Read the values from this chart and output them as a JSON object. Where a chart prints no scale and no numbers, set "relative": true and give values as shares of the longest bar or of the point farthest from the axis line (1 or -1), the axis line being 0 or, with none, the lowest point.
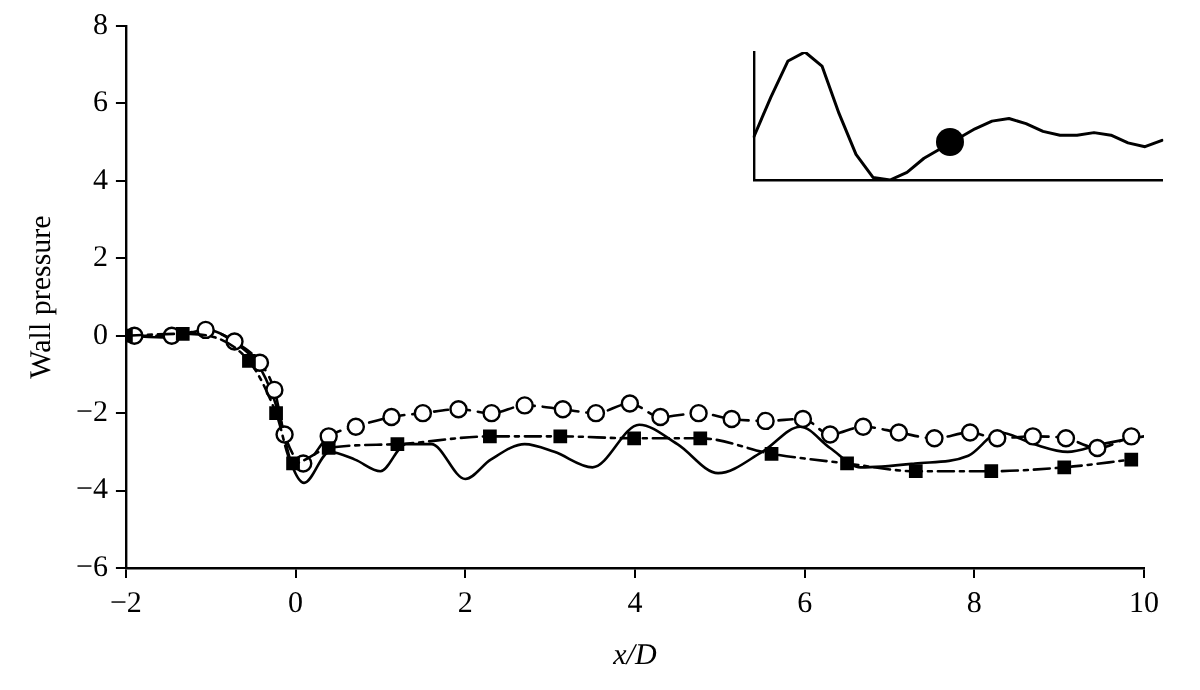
{
  "chart_data": [
    {
      "type": "line",
      "xlabel": "x/D",
      "ylabel": "Wall pressure",
      "xlim": [
        -2,
        10
      ],
      "ylim": [
        -6,
        8
      ],
      "xticks": [
        -2,
        0,
        2,
        4,
        6,
        8,
        10
      ],
      "yticks": [
        -6,
        -4,
        -2,
        0,
        2,
        4,
        6,
        8
      ],
      "grid": false,
      "legend": false,
      "series": [
        {
          "color": "#000000",
          "line_style": "solid",
          "marker": "none",
          "x": [
            -2,
            -1.5,
            -1.05,
            -0.7,
            -0.4,
            -0.2,
            -0.05,
            0.1,
            0.4,
            0.7,
            1.0,
            1.3,
            1.6,
            2.0,
            2.3,
            2.7,
            3.05,
            3.5,
            4.05,
            4.5,
            4.98,
            5.5,
            5.95,
            6.3,
            6.66,
            7.3,
            7.93,
            8.3,
            8.7,
            9.1,
            9.5,
            10
          ],
          "values": [
            0,
            -0.05,
            0.15,
            -0.2,
            -0.9,
            -2.0,
            -3.3,
            -3.8,
            -3.0,
            -3.2,
            -3.5,
            -2.8,
            -2.8,
            -3.7,
            -3.2,
            -2.8,
            -3.0,
            -3.4,
            -2.3,
            -2.8,
            -3.55,
            -3.0,
            -2.35,
            -2.9,
            -3.4,
            -3.3,
            -3.1,
            -2.5,
            -2.8,
            -3.0,
            -2.8,
            -2.6
          ]
        },
        {
          "color": "#000000",
          "line_style": "dashed",
          "marker": "circle",
          "x": [
            -1.9,
            -1.46,
            -1.06,
            -0.72,
            -0.42,
            -0.25,
            -0.13,
            0.09,
            0.39,
            0.71,
            1.13,
            1.5,
            1.92,
            2.31,
            2.7,
            3.15,
            3.54,
            3.94,
            4.3,
            4.75,
            5.14,
            5.54,
            5.98,
            6.3,
            6.69,
            7.11,
            7.53,
            7.95,
            8.27,
            8.69,
            9.08,
            9.45,
            9.85
          ],
          "values": [
            0,
            0,
            0.15,
            -0.15,
            -0.7,
            -1.4,
            -2.55,
            -3.3,
            -2.6,
            -2.35,
            -2.1,
            -2.0,
            -1.9,
            -2.0,
            -1.8,
            -1.9,
            -2.0,
            -1.75,
            -2.1,
            -2.0,
            -2.15,
            -2.2,
            -2.15,
            -2.55,
            -2.35,
            -2.5,
            -2.65,
            -2.5,
            -2.65,
            -2.6,
            -2.65,
            -2.9,
            -2.6
          ]
        },
        {
          "color": "#000000",
          "line_style": "dashdot",
          "marker": "square",
          "x": [
            -2,
            -1.33,
            -0.55,
            -0.23,
            -0.03,
            0.39,
            1.2,
            2.29,
            3.12,
            3.99,
            4.77,
            5.61,
            6.5,
            7.31,
            8.2,
            9.06,
            9.85
          ],
          "values": [
            0,
            0.05,
            -0.65,
            -2.0,
            -3.3,
            -2.9,
            -2.8,
            -2.6,
            -2.6,
            -2.65,
            -2.65,
            -3.05,
            -3.3,
            -3.5,
            -3.5,
            -3.4,
            -3.2
          ]
        }
      ]
    },
    {
      "type": "line",
      "relative": true,
      "legend": false,
      "grid": false,
      "categories": [
        null,
        null,
        null,
        null,
        null,
        null,
        null,
        null,
        null,
        null,
        null,
        null,
        null,
        null,
        null,
        null,
        null,
        null,
        null,
        null,
        null,
        null,
        null,
        null,
        null
      ],
      "series": [
        {
          "color": "#000000",
          "marker": "none",
          "values": [
            0.34,
            0.65,
            0.93,
            1.0,
            0.89,
            0.52,
            0.2,
            0.02,
            0,
            0.06,
            0.17,
            null,
            null,
            0.4,
            0.46,
            0.48,
            0.44,
            0.38,
            0.35,
            0.35,
            0.37,
            0.35,
            0.29,
            0.26,
            0.31
          ]
        }
      ]
    }
  ]
}
